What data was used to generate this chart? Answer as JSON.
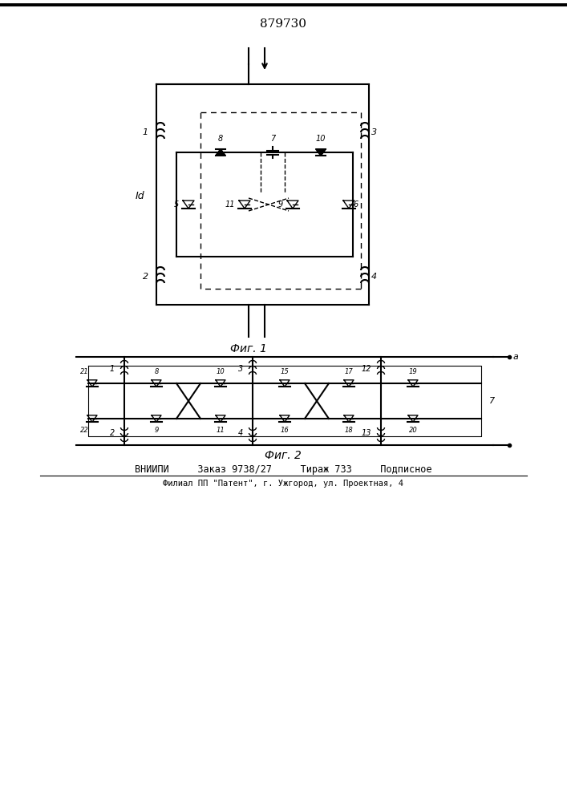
{
  "patent_number": "879730",
  "fig1_label": "Фиг. 1",
  "fig2_label": "Фиг. 2",
  "bottom_line1": "ВНИИПИ     Заказ 9738/27     Тираж 733     Подписное",
  "bottom_line2": "Филиал ПП \"Патент\", г. Ужгород, ул. Проектная, 4",
  "line_color": "#000000",
  "bg_color": "#ffffff",
  "dashed_color": "#000000"
}
